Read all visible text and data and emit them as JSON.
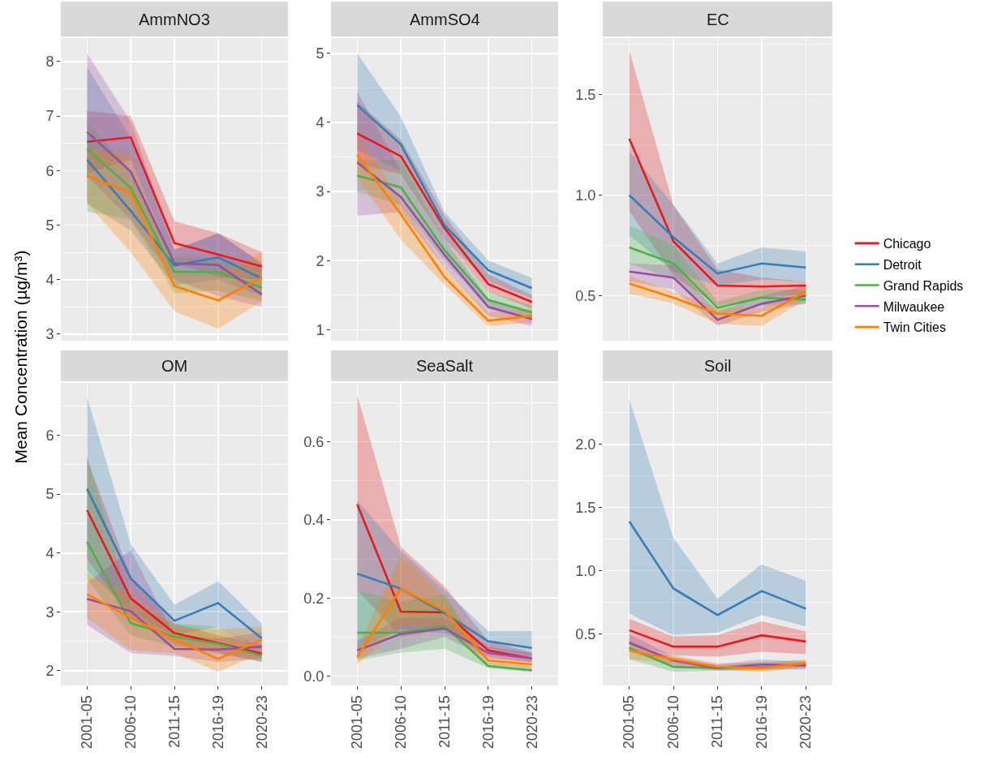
{
  "chart_data": [
    {
      "type": "line",
      "title": "AmmNO3",
      "ylabel": "Mean Concentration (µg/m³)",
      "categories": [
        "2001-05",
        "2006-10",
        "2011-15",
        "2016-19",
        "2020-23"
      ],
      "ylim": [
        2.88,
        8.43
      ],
      "yticks": [
        3,
        4,
        5,
        6,
        7,
        8
      ],
      "grid": true,
      "tick_labels": "y",
      "series": [
        {
          "color": "#e41a1c",
          "values": [
            6.53,
            6.61,
            4.67,
            4.46,
            4.24
          ],
          "lower": [
            5.95,
            6.2,
            4.3,
            4.05,
            4.0
          ],
          "upper": [
            7.1,
            7.0,
            5.07,
            4.85,
            4.5
          ]
        },
        {
          "color": "#377eb8",
          "values": [
            6.2,
            5.26,
            4.26,
            4.41,
            4.02
          ],
          "lower": [
            5.4,
            4.9,
            3.9,
            4.0,
            3.7
          ],
          "upper": [
            7.9,
            6.6,
            4.55,
            4.85,
            4.3
          ]
        },
        {
          "color": "#4daf4a",
          "values": [
            6.4,
            5.68,
            4.14,
            4.14,
            3.85
          ],
          "lower": [
            5.25,
            5.1,
            3.75,
            3.8,
            3.6
          ],
          "upper": [
            6.9,
            6.0,
            4.4,
            4.4,
            4.2
          ]
        },
        {
          "color": "#984ea3",
          "values": [
            6.71,
            5.98,
            4.3,
            4.27,
            3.73
          ],
          "lower": [
            5.9,
            5.1,
            4.0,
            3.7,
            3.5
          ],
          "upper": [
            8.15,
            6.9,
            4.55,
            4.85,
            4.3
          ]
        },
        {
          "color": "#ff7f00",
          "values": [
            5.9,
            5.6,
            3.88,
            3.62,
            4.04
          ],
          "lower": [
            5.4,
            4.5,
            3.42,
            3.1,
            3.6
          ],
          "upper": [
            6.4,
            6.3,
            4.2,
            4.1,
            4.5
          ]
        }
      ]
    },
    {
      "type": "line",
      "title": "AmmSO4",
      "categories": [
        "2001-05",
        "2006-10",
        "2011-15",
        "2016-19",
        "2020-23"
      ],
      "ylim": [
        0.84,
        5.22
      ],
      "yticks": [
        1,
        2,
        3,
        4,
        5
      ],
      "grid": true,
      "tick_labels": "y",
      "series": [
        {
          "color": "#e41a1c",
          "values": [
            3.84,
            3.51,
            2.47,
            1.66,
            1.4
          ],
          "lower": [
            3.4,
            3.25,
            2.3,
            1.55,
            1.3
          ],
          "upper": [
            4.3,
            3.75,
            2.65,
            1.8,
            1.5
          ]
        },
        {
          "color": "#377eb8",
          "values": [
            4.25,
            3.68,
            2.51,
            1.86,
            1.6
          ],
          "lower": [
            3.6,
            3.3,
            2.3,
            1.7,
            1.45
          ],
          "upper": [
            5.0,
            4.08,
            2.7,
            2.0,
            1.75
          ]
        },
        {
          "color": "#4daf4a",
          "values": [
            3.23,
            3.06,
            2.15,
            1.43,
            1.25
          ],
          "lower": [
            3.0,
            2.8,
            2.0,
            1.3,
            1.15
          ],
          "upper": [
            3.45,
            3.45,
            2.3,
            1.55,
            1.35
          ]
        },
        {
          "color": "#984ea3",
          "values": [
            3.42,
            2.92,
            2.08,
            1.33,
            1.15
          ],
          "lower": [
            2.65,
            2.7,
            1.9,
            1.2,
            1.05
          ],
          "upper": [
            4.45,
            3.3,
            2.3,
            1.45,
            1.25
          ]
        },
        {
          "color": "#ff7f00",
          "values": [
            3.53,
            2.67,
            1.76,
            1.13,
            1.2
          ],
          "lower": [
            3.2,
            2.3,
            1.65,
            1.05,
            1.1
          ],
          "upper": [
            3.85,
            2.85,
            1.9,
            1.25,
            1.3
          ]
        }
      ]
    },
    {
      "type": "line",
      "title": "EC",
      "legend": "right",
      "categories": [
        "2001-05",
        "2006-10",
        "2011-15",
        "2016-19",
        "2020-23"
      ],
      "ylim": [
        0.276,
        1.78
      ],
      "yticks": [
        0.5,
        {
          "value": 1,
          "label": "1.0"
        },
        1.5
      ],
      "grid": true,
      "tick_labels": "y",
      "series": [
        {
          "name": "Chicago",
          "color": "#e41a1c",
          "values": [
            1.28,
            0.77,
            0.55,
            0.545,
            0.55
          ],
          "lower": [
            0.92,
            0.6,
            0.45,
            0.49,
            0.51
          ],
          "upper": [
            1.72,
            0.95,
            0.63,
            0.59,
            0.57
          ]
        },
        {
          "name": "Detroit",
          "color": "#377eb8",
          "values": [
            1.0,
            0.79,
            0.61,
            0.66,
            0.64
          ],
          "lower": [
            0.8,
            0.62,
            0.55,
            0.58,
            0.57
          ],
          "upper": [
            1.22,
            0.95,
            0.66,
            0.74,
            0.72
          ]
        },
        {
          "name": "Grand Rapids",
          "color": "#4daf4a",
          "values": [
            0.74,
            0.66,
            0.44,
            0.49,
            0.48
          ],
          "lower": [
            0.66,
            0.58,
            0.4,
            0.45,
            0.46
          ],
          "upper": [
            0.85,
            0.75,
            0.47,
            0.53,
            0.53
          ]
        },
        {
          "name": "Milwaukee",
          "color": "#984ea3",
          "values": [
            0.62,
            0.59,
            0.38,
            0.46,
            0.5
          ],
          "lower": [
            0.57,
            0.53,
            0.35,
            0.42,
            0.46
          ],
          "upper": [
            0.66,
            0.65,
            0.42,
            0.5,
            0.55
          ]
        },
        {
          "name": "Twin Cities",
          "color": "#ff7f00",
          "values": [
            0.56,
            0.49,
            0.41,
            0.4,
            0.52
          ],
          "lower": [
            0.51,
            0.46,
            0.36,
            0.35,
            0.48
          ],
          "upper": [
            0.6,
            0.52,
            0.44,
            0.44,
            0.56
          ]
        }
      ]
    },
    {
      "type": "line",
      "title": "OM",
      "categories": [
        "2001-05",
        "2006-10",
        "2011-15",
        "2016-19",
        "2020-23"
      ],
      "ylim": [
        1.75,
        6.89
      ],
      "yticks": [
        2,
        3,
        4,
        5,
        6
      ],
      "grid": true,
      "series": [
        {
          "color": "#e41a1c",
          "values": [
            4.73,
            3.23,
            2.64,
            2.47,
            2.29
          ],
          "lower": [
            3.9,
            2.9,
            2.45,
            2.3,
            2.15
          ],
          "upper": [
            5.6,
            3.6,
            2.8,
            2.6,
            2.45
          ]
        },
        {
          "color": "#377eb8",
          "values": [
            5.09,
            3.57,
            2.85,
            3.15,
            2.55
          ],
          "lower": [
            3.7,
            3.0,
            2.6,
            2.75,
            2.35
          ],
          "upper": [
            6.65,
            4.15,
            3.12,
            3.52,
            2.8
          ]
        },
        {
          "color": "#4daf4a",
          "values": [
            4.19,
            2.81,
            2.58,
            2.46,
            2.26
          ],
          "lower": [
            3.55,
            2.6,
            2.4,
            2.3,
            2.15
          ],
          "upper": [
            5.65,
            3.1,
            2.8,
            2.75,
            2.4
          ]
        },
        {
          "color": "#984ea3",
          "values": [
            3.22,
            3.01,
            2.37,
            2.36,
            2.41
          ],
          "lower": [
            2.78,
            2.3,
            2.25,
            2.15,
            2.2
          ],
          "upper": [
            3.5,
            4.05,
            2.6,
            2.55,
            2.65
          ]
        },
        {
          "color": "#ff7f00",
          "values": [
            3.3,
            2.9,
            2.53,
            2.2,
            2.53
          ],
          "lower": [
            2.9,
            2.35,
            2.3,
            1.98,
            2.3
          ],
          "upper": [
            3.65,
            3.3,
            2.75,
            2.7,
            2.75
          ]
        }
      ]
    },
    {
      "type": "line",
      "title": "SeaSalt",
      "categories": [
        "2001-05",
        "2006-10",
        "2011-15",
        "2016-19",
        "2020-23"
      ],
      "ylim": [
        -0.024,
        0.751
      ],
      "yticks": [
        {
          "value": 0,
          "label": "0.0"
        },
        0.2,
        0.4,
        0.6
      ],
      "grid": true,
      "series": [
        {
          "color": "#e41a1c",
          "values": [
            0.44,
            0.165,
            0.163,
            0.066,
            0.045
          ],
          "lower": [
            0.22,
            0.1,
            0.12,
            0.05,
            0.035
          ],
          "upper": [
            0.72,
            0.33,
            0.23,
            0.09,
            0.06
          ]
        },
        {
          "color": "#377eb8",
          "values": [
            0.262,
            0.224,
            0.161,
            0.089,
            0.072
          ],
          "lower": [
            0.07,
            0.12,
            0.11,
            0.07,
            0.05
          ],
          "upper": [
            0.45,
            0.32,
            0.22,
            0.115,
            0.115
          ]
        },
        {
          "color": "#4daf4a",
          "values": [
            0.111,
            0.111,
            0.128,
            0.026,
            0.015
          ],
          "lower": [
            0.04,
            0.06,
            0.07,
            0.02,
            0.01
          ],
          "upper": [
            0.22,
            0.19,
            0.21,
            0.035,
            0.025
          ]
        },
        {
          "color": "#984ea3",
          "values": [
            0.066,
            0.108,
            0.122,
            0.059,
            0.045
          ],
          "lower": [
            0.045,
            0.07,
            0.1,
            0.045,
            0.035
          ],
          "upper": [
            0.09,
            0.15,
            0.15,
            0.075,
            0.06
          ]
        },
        {
          "color": "#ff7f00",
          "values": [
            0.049,
            0.224,
            0.167,
            0.04,
            0.03
          ],
          "lower": [
            0.03,
            0.13,
            0.13,
            0.03,
            0.02
          ],
          "upper": [
            0.07,
            0.31,
            0.2,
            0.05,
            0.04
          ]
        }
      ]
    },
    {
      "type": "line",
      "title": "Soil",
      "categories": [
        "2001-05",
        "2006-10",
        "2011-15",
        "2016-19",
        "2020-23"
      ],
      "ylim": [
        0.093,
        2.486
      ],
      "yticks": [
        0.5,
        {
          "value": 1,
          "label": "1.0"
        },
        1.5,
        {
          "value": 2,
          "label": "2.0"
        }
      ],
      "grid": true,
      "series": [
        {
          "color": "#e41a1c",
          "values": [
            0.53,
            0.4,
            0.4,
            0.49,
            0.44
          ],
          "lower": [
            0.42,
            0.33,
            0.32,
            0.36,
            0.34
          ],
          "upper": [
            0.62,
            0.48,
            0.49,
            0.6,
            0.52
          ]
        },
        {
          "color": "#377eb8",
          "values": [
            1.39,
            0.86,
            0.65,
            0.84,
            0.7
          ],
          "lower": [
            0.66,
            0.49,
            0.51,
            0.65,
            0.56
          ],
          "upper": [
            2.36,
            1.26,
            0.78,
            1.05,
            0.92
          ]
        },
        {
          "color": "#4daf4a",
          "values": [
            0.39,
            0.24,
            0.23,
            0.24,
            0.26
          ],
          "lower": [
            0.3,
            0.2,
            0.21,
            0.21,
            0.23
          ],
          "upper": [
            0.45,
            0.28,
            0.25,
            0.28,
            0.29
          ]
        },
        {
          "color": "#984ea3",
          "values": [
            0.43,
            0.29,
            0.23,
            0.26,
            0.25
          ],
          "lower": [
            0.36,
            0.25,
            0.21,
            0.22,
            0.22
          ],
          "upper": [
            0.5,
            0.32,
            0.26,
            0.3,
            0.28
          ]
        },
        {
          "color": "#ff7f00",
          "values": [
            0.37,
            0.3,
            0.24,
            0.23,
            0.27
          ],
          "lower": [
            0.3,
            0.27,
            0.22,
            0.2,
            0.24
          ],
          "upper": [
            0.42,
            0.33,
            0.27,
            0.27,
            0.3
          ]
        }
      ]
    }
  ]
}
